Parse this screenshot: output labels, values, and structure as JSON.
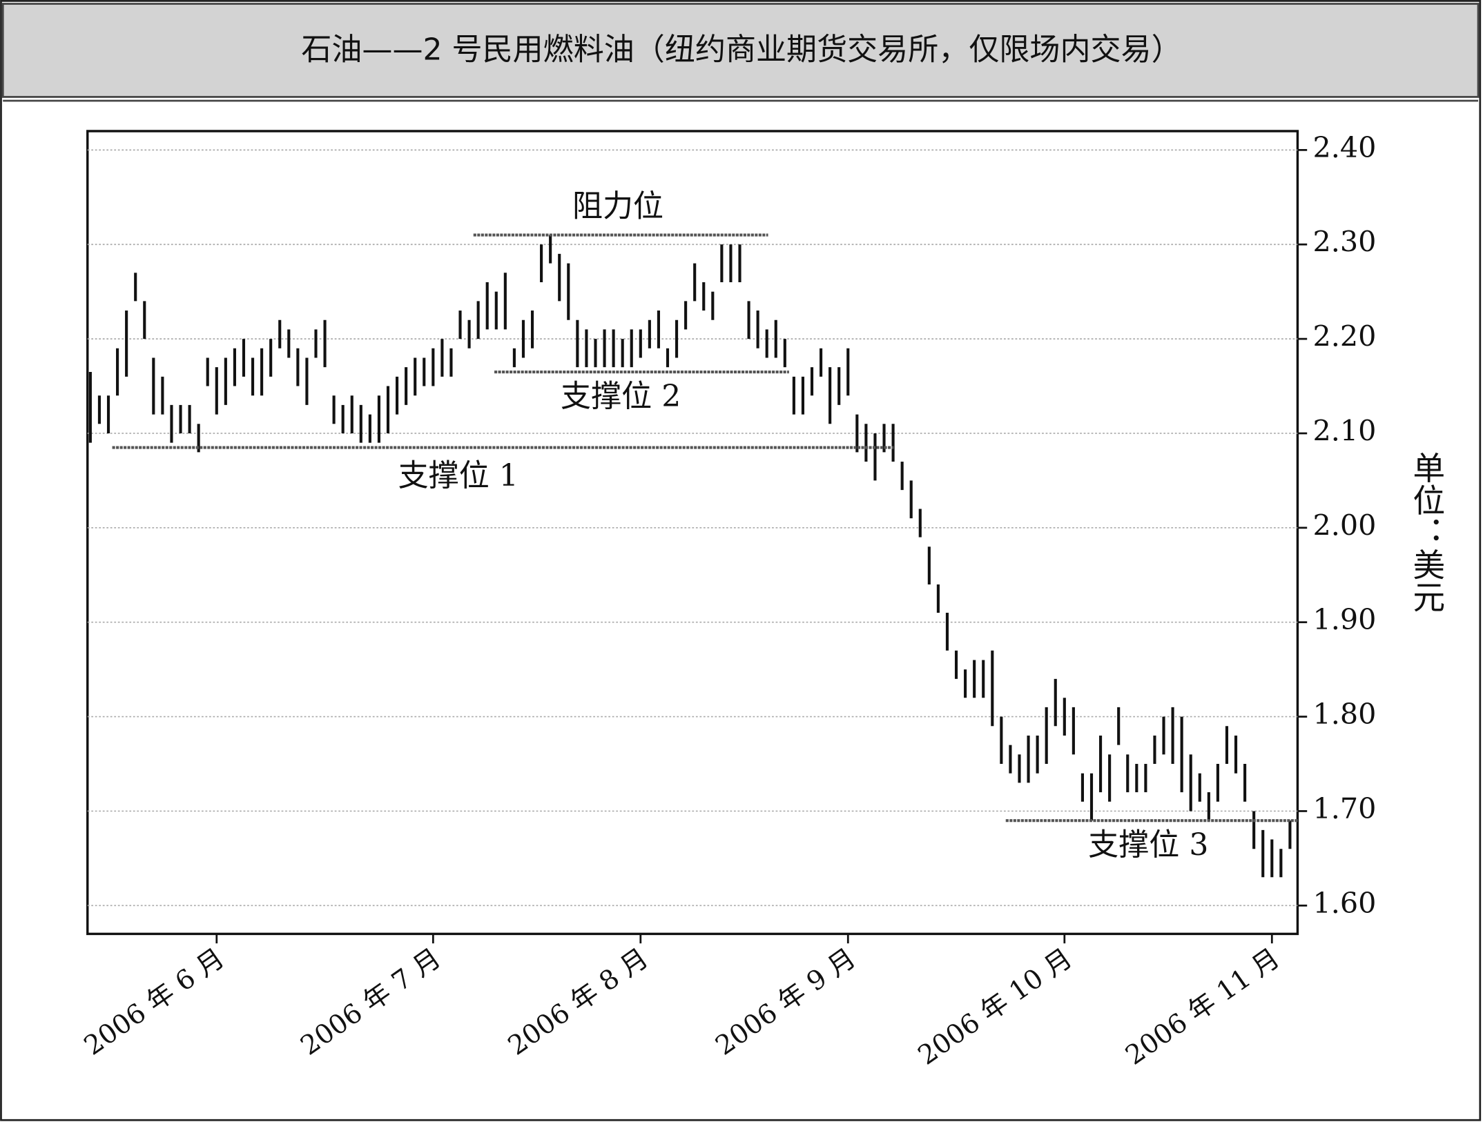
{
  "chart_data": {
    "type": "range_bar",
    "title": "石油——2 号民用燃料油（纽约商业期货交易所，仅限场内交易）",
    "y_label": "单位：美元",
    "color": "#111111",
    "grid": true,
    "ylim": [
      1.57,
      2.42
    ],
    "yticks": [
      {
        "value": 1.6,
        "label": "1.60"
      },
      {
        "value": 1.7,
        "label": "1.70"
      },
      {
        "value": 1.8,
        "label": "1.80"
      },
      {
        "value": 1.9,
        "label": "1.90"
      },
      {
        "value": 2.0,
        "label": "2.00"
      },
      {
        "value": 2.1,
        "label": "2.10"
      },
      {
        "value": 2.2,
        "label": "2.20"
      },
      {
        "value": 2.3,
        "label": "2.30"
      },
      {
        "value": 2.4,
        "label": "2.40"
      }
    ],
    "categories": [
      null,
      null,
      null,
      null,
      null,
      null,
      null,
      null,
      null,
      null,
      null,
      null,
      null,
      null,
      "2006 年 6 月",
      null,
      null,
      null,
      null,
      null,
      null,
      null,
      null,
      null,
      null,
      null,
      null,
      null,
      null,
      null,
      null,
      null,
      null,
      null,
      null,
      null,
      null,
      null,
      "2006 年 7 月",
      null,
      null,
      null,
      null,
      null,
      null,
      null,
      null,
      null,
      null,
      null,
      null,
      null,
      null,
      null,
      null,
      null,
      null,
      null,
      null,
      null,
      null,
      "2006 年 8 月",
      null,
      null,
      null,
      null,
      null,
      null,
      null,
      null,
      null,
      null,
      null,
      null,
      null,
      null,
      null,
      null,
      null,
      null,
      null,
      null,
      null,
      null,
      "2006 年 9 月",
      null,
      null,
      null,
      null,
      null,
      null,
      null,
      null,
      null,
      null,
      null,
      null,
      null,
      null,
      null,
      null,
      null,
      null,
      null,
      null,
      null,
      null,
      null,
      "2006 年 10 月",
      null,
      null,
      null,
      null,
      null,
      null,
      null,
      null,
      null,
      null,
      null,
      null,
      null,
      null,
      null,
      null,
      null,
      null,
      null,
      null,
      null,
      null,
      "2006 年 11 月",
      null,
      null
    ],
    "high": [
      2.165,
      2.14,
      2.14,
      2.19,
      2.23,
      2.27,
      2.24,
      2.18,
      2.16,
      2.13,
      2.13,
      2.13,
      2.11,
      2.18,
      2.17,
      2.18,
      2.19,
      2.2,
      2.18,
      2.19,
      2.2,
      2.22,
      2.21,
      2.19,
      2.18,
      2.21,
      2.22,
      2.14,
      2.13,
      2.14,
      2.13,
      2.12,
      2.14,
      2.15,
      2.16,
      2.17,
      2.18,
      2.18,
      2.19,
      2.2,
      2.19,
      2.23,
      2.22,
      2.24,
      2.26,
      2.25,
      2.27,
      2.19,
      2.22,
      2.23,
      2.3,
      2.31,
      2.29,
      2.28,
      2.22,
      2.21,
      2.2,
      2.21,
      2.21,
      2.2,
      2.21,
      2.21,
      2.22,
      2.23,
      2.19,
      2.22,
      2.24,
      2.28,
      2.26,
      2.25,
      2.3,
      2.3,
      2.3,
      2.24,
      2.23,
      2.21,
      2.22,
      2.2,
      2.16,
      2.16,
      2.17,
      2.19,
      2.17,
      2.17,
      2.19,
      2.12,
      2.11,
      2.1,
      2.11,
      2.11,
      2.07,
      2.05,
      2.02,
      1.98,
      1.94,
      1.91,
      1.87,
      1.85,
      1.86,
      1.86,
      1.87,
      1.8,
      1.77,
      1.76,
      1.78,
      1.78,
      1.81,
      1.84,
      1.82,
      1.81,
      1.74,
      1.74,
      1.78,
      1.76,
      1.81,
      1.76,
      1.75,
      1.75,
      1.78,
      1.8,
      1.81,
      1.8,
      1.76,
      1.74,
      1.72,
      1.75,
      1.79,
      1.78,
      1.75,
      1.7,
      1.68,
      1.67,
      1.66,
      1.69
    ],
    "low": [
      2.09,
      2.11,
      2.1,
      2.14,
      2.16,
      2.24,
      2.2,
      2.12,
      2.12,
      2.09,
      2.1,
      2.1,
      2.08,
      2.15,
      2.12,
      2.13,
      2.15,
      2.16,
      2.14,
      2.14,
      2.16,
      2.19,
      2.18,
      2.15,
      2.13,
      2.18,
      2.17,
      2.11,
      2.1,
      2.1,
      2.09,
      2.09,
      2.09,
      2.1,
      2.12,
      2.13,
      2.14,
      2.15,
      2.15,
      2.16,
      2.16,
      2.2,
      2.19,
      2.2,
      2.21,
      2.21,
      2.21,
      2.17,
      2.18,
      2.19,
      2.26,
      2.28,
      2.24,
      2.22,
      2.17,
      2.17,
      2.17,
      2.17,
      2.17,
      2.17,
      2.17,
      2.18,
      2.19,
      2.19,
      2.17,
      2.18,
      2.21,
      2.24,
      2.23,
      2.22,
      2.26,
      2.26,
      2.26,
      2.2,
      2.19,
      2.18,
      2.18,
      2.17,
      2.12,
      2.12,
      2.14,
      2.16,
      2.11,
      2.13,
      2.14,
      2.08,
      2.07,
      2.05,
      2.08,
      2.07,
      2.04,
      2.01,
      1.99,
      1.94,
      1.91,
      1.87,
      1.84,
      1.82,
      1.82,
      1.82,
      1.79,
      1.75,
      1.74,
      1.73,
      1.73,
      1.74,
      1.75,
      1.79,
      1.78,
      1.76,
      1.71,
      1.69,
      1.72,
      1.71,
      1.77,
      1.72,
      1.72,
      1.72,
      1.75,
      1.76,
      1.75,
      1.72,
      1.7,
      1.71,
      1.69,
      1.71,
      1.75,
      1.74,
      1.71,
      1.66,
      1.63,
      1.63,
      1.63,
      1.66
    ],
    "annotations": [
      {
        "text": "阻力位",
        "value": 2.31
      },
      {
        "text": "支撑位 2",
        "value": 2.165
      },
      {
        "text": "支撑位 1",
        "value": 2.085
      },
      {
        "text": "支撑位 3",
        "value": 1.69
      }
    ]
  }
}
